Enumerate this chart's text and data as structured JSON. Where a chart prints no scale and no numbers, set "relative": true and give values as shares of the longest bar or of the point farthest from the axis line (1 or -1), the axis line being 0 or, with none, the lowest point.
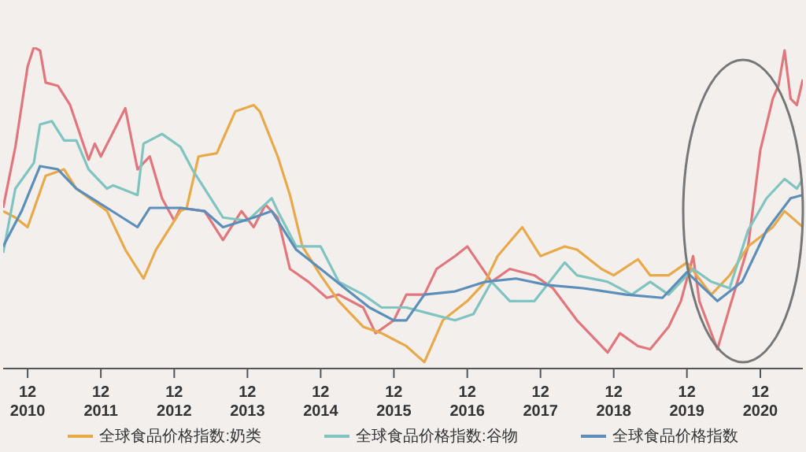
{
  "chart_data": {
    "type": "line",
    "relative": true,
    "grid": false,
    "legend": "bottom",
    "marker": "none",
    "line_style": "solid",
    "xlim": [
      "2010-08",
      "2021-07"
    ],
    "xticks": [
      {
        "value": "2010-12",
        "label": "12\n2010"
      },
      {
        "value": "2011-12",
        "label": "12\n2011"
      },
      {
        "value": "2012-12",
        "label": "12\n2012"
      },
      {
        "value": "2013-12",
        "label": "12\n2013"
      },
      {
        "value": "2014-12",
        "label": "12\n2014"
      },
      {
        "value": "2015-12",
        "label": "12\n2015"
      },
      {
        "value": "2016-12",
        "label": "12\n2016"
      },
      {
        "value": "2017-12",
        "label": "12\n2017"
      },
      {
        "value": "2018-12",
        "label": "12\n2018"
      },
      {
        "value": "2019-12",
        "label": "12\n2019"
      },
      {
        "value": "2020-12",
        "label": "12\n2020"
      }
    ],
    "series": [
      {
        "color": "#e0777d",
        "x": [
          "2010-08",
          "2010-10",
          "2010-12",
          "2011-01",
          "2011-02",
          "2011-03",
          "2011-05",
          "2011-07",
          "2011-10",
          "2011-11",
          "2011-12",
          "2012-04",
          "2012-06",
          "2012-08",
          "2012-10",
          "2012-12",
          "2013-01",
          "2013-05",
          "2013-08",
          "2013-11",
          "2014-01",
          "2014-03",
          "2014-05",
          "2014-07",
          "2014-10",
          "2015-01",
          "2015-03",
          "2015-07",
          "2015-09",
          "2015-12",
          "2016-02",
          "2016-05",
          "2016-07",
          "2016-10",
          "2016-12",
          "2017-04",
          "2017-07",
          "2017-11",
          "2018-02",
          "2018-06",
          "2018-11",
          "2019-01",
          "2019-04",
          "2019-06",
          "2019-09",
          "2019-11",
          "2020-01",
          "2020-02",
          "2020-05",
          "2020-07",
          "2020-10",
          "2020-12",
          "2021-02",
          "2021-03",
          "2021-04",
          "2021-05",
          "2021-06",
          "2021-07"
        ],
        "values": [
          0.5,
          0.69,
          0.94,
          1.0,
          0.99,
          0.89,
          0.88,
          0.82,
          0.65,
          0.7,
          0.66,
          0.81,
          0.62,
          0.66,
          0.53,
          0.46,
          0.5,
          0.49,
          0.4,
          0.49,
          0.44,
          0.51,
          0.47,
          0.31,
          0.27,
          0.22,
          0.23,
          0.19,
          0.11,
          0.15,
          0.23,
          0.23,
          0.31,
          0.35,
          0.38,
          0.27,
          0.31,
          0.29,
          0.25,
          0.15,
          0.05,
          0.11,
          0.07,
          0.06,
          0.13,
          0.21,
          0.35,
          0.21,
          0.06,
          0.19,
          0.38,
          0.68,
          0.84,
          0.88,
          0.99,
          0.84,
          0.82,
          0.9
        ]
      },
      {
        "name": "全球食品价格指数:奶类",
        "color": "#e8a94a",
        "x": [
          "2010-08",
          "2010-10",
          "2010-12",
          "2011-03",
          "2011-06",
          "2011-08",
          "2012-01",
          "2012-04",
          "2012-07",
          "2012-09",
          "2013-01",
          "2013-02",
          "2013-04",
          "2013-07",
          "2013-10",
          "2014-01",
          "2014-02",
          "2014-05",
          "2014-07",
          "2014-09",
          "2014-12",
          "2015-03",
          "2015-07",
          "2015-10",
          "2015-12",
          "2016-02",
          "2016-05",
          "2016-08",
          "2016-12",
          "2017-03",
          "2017-05",
          "2017-09",
          "2017-12",
          "2018-04",
          "2018-06",
          "2018-10",
          "2018-12",
          "2019-04",
          "2019-06",
          "2019-09",
          "2019-12",
          "2020-04",
          "2020-07",
          "2020-10",
          "2021-02",
          "2021-04",
          "2021-07"
        ],
        "values": [
          0.49,
          0.47,
          0.44,
          0.6,
          0.62,
          0.56,
          0.49,
          0.37,
          0.28,
          0.37,
          0.49,
          0.5,
          0.66,
          0.67,
          0.8,
          0.82,
          0.8,
          0.66,
          0.54,
          0.38,
          0.29,
          0.21,
          0.13,
          0.11,
          0.09,
          0.07,
          0.02,
          0.15,
          0.21,
          0.27,
          0.35,
          0.44,
          0.35,
          0.38,
          0.37,
          0.31,
          0.29,
          0.34,
          0.29,
          0.29,
          0.33,
          0.23,
          0.29,
          0.38,
          0.44,
          0.49,
          0.44
        ]
      },
      {
        "name": "全球食品价格指数:谷物",
        "color": "#7fc4c0",
        "x": [
          "2010-08",
          "2010-10",
          "2011-01",
          "2011-02",
          "2011-04",
          "2011-06",
          "2011-08",
          "2011-10",
          "2012-01",
          "2012-02",
          "2012-06",
          "2012-07",
          "2012-10",
          "2013-01",
          "2013-03",
          "2013-08",
          "2013-12",
          "2014-04",
          "2014-05",
          "2014-08",
          "2014-12",
          "2015-03",
          "2015-07",
          "2015-10",
          "2016-02",
          "2016-06",
          "2016-10",
          "2017-01",
          "2017-04",
          "2017-07",
          "2017-11",
          "2018-04",
          "2018-06",
          "2018-11",
          "2019-03",
          "2019-06",
          "2019-09",
          "2020-01",
          "2020-04",
          "2020-07",
          "2020-10",
          "2021-01",
          "2021-04",
          "2021-06",
          "2021-07"
        ],
        "values": [
          0.36,
          0.56,
          0.64,
          0.76,
          0.77,
          0.71,
          0.71,
          0.62,
          0.56,
          0.57,
          0.54,
          0.7,
          0.73,
          0.69,
          0.62,
          0.47,
          0.46,
          0.53,
          0.49,
          0.38,
          0.38,
          0.27,
          0.23,
          0.19,
          0.19,
          0.17,
          0.15,
          0.17,
          0.27,
          0.21,
          0.21,
          0.33,
          0.29,
          0.27,
          0.23,
          0.27,
          0.23,
          0.31,
          0.27,
          0.25,
          0.43,
          0.53,
          0.59,
          0.56,
          0.59
        ]
      },
      {
        "name": "全球食品价格指数",
        "color": "#5b8fb9",
        "x": [
          "2010-08",
          "2010-11",
          "2011-02",
          "2011-05",
          "2011-08",
          "2012-01",
          "2012-06",
          "2012-08",
          "2013-01",
          "2013-05",
          "2013-08",
          "2014-01",
          "2014-04",
          "2014-08",
          "2014-12",
          "2015-04",
          "2015-08",
          "2015-12",
          "2016-02",
          "2016-05",
          "2016-10",
          "2017-03",
          "2017-08",
          "2018-01",
          "2018-07",
          "2019-02",
          "2019-08",
          "2019-12",
          "2020-05",
          "2020-09",
          "2021-01",
          "2021-05",
          "2021-07"
        ],
        "values": [
          0.38,
          0.49,
          0.63,
          0.62,
          0.56,
          0.5,
          0.44,
          0.5,
          0.5,
          0.49,
          0.44,
          0.47,
          0.49,
          0.37,
          0.31,
          0.25,
          0.19,
          0.15,
          0.15,
          0.23,
          0.24,
          0.27,
          0.28,
          0.26,
          0.25,
          0.23,
          0.22,
          0.3,
          0.21,
          0.27,
          0.43,
          0.53,
          0.54
        ]
      }
    ]
  }
}
